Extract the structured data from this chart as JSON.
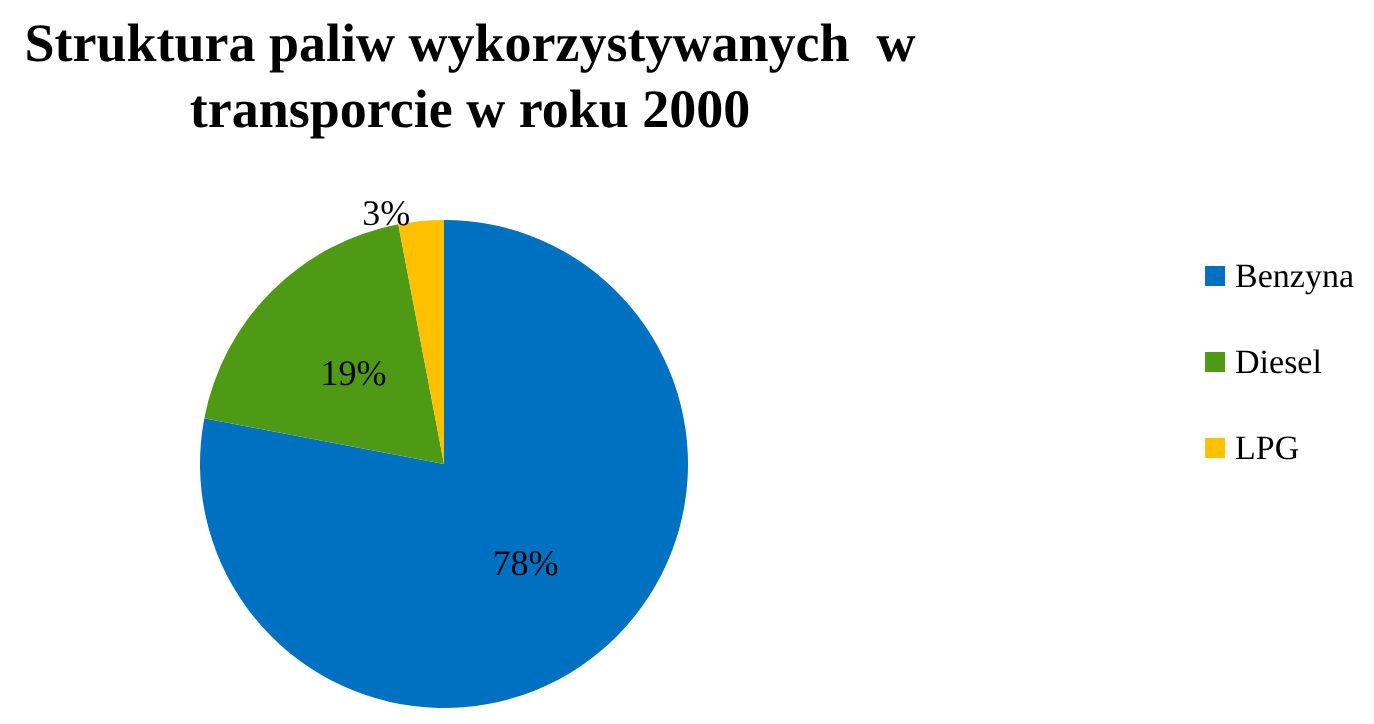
{
  "chart_data": {
    "type": "pie",
    "title": "Struktura paliw wykorzystywanych  w\ntransporcie w roku 2000",
    "categories": [
      "Benzyna",
      "Diesel",
      "LPG"
    ],
    "values": [
      78,
      19,
      3
    ],
    "colors": [
      "#0070c0",
      "#4e9a14",
      "#ffc000"
    ],
    "value_labels": [
      "78%",
      "19%",
      "3%"
    ],
    "legend": "right"
  }
}
